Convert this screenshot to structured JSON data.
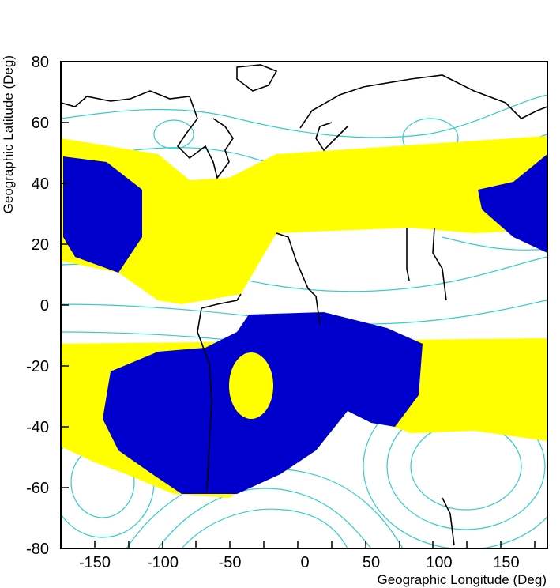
{
  "axes": {
    "x_label": "Geographic Longitude (Deg)",
    "y_label": "Geographic Latitude (Deg)",
    "x_range": [
      -180,
      180
    ],
    "y_range": [
      -80,
      80
    ],
    "x_ticks": [
      "-150",
      "-100",
      "-50",
      "0",
      "50",
      "100",
      "150"
    ],
    "y_ticks": [
      "80",
      "60",
      "40",
      "20",
      "0",
      "-20",
      "-40",
      "-60",
      "-80"
    ]
  },
  "colors": {
    "yellow_region": "#ffff00",
    "blue_region": "#0000cc",
    "contours": "#33cccc",
    "coastline": "#000000",
    "frame": "#000000"
  },
  "chart_data": {
    "type": "map",
    "projection": "equirectangular longitude-latitude",
    "layers": [
      {
        "name": "coastlines",
        "color": "black"
      },
      {
        "name": "magnetic field contours",
        "color": "cyan"
      },
      {
        "name": "yellow region",
        "color": "yellow"
      },
      {
        "name": "blue region",
        "color": "blue"
      }
    ]
  }
}
